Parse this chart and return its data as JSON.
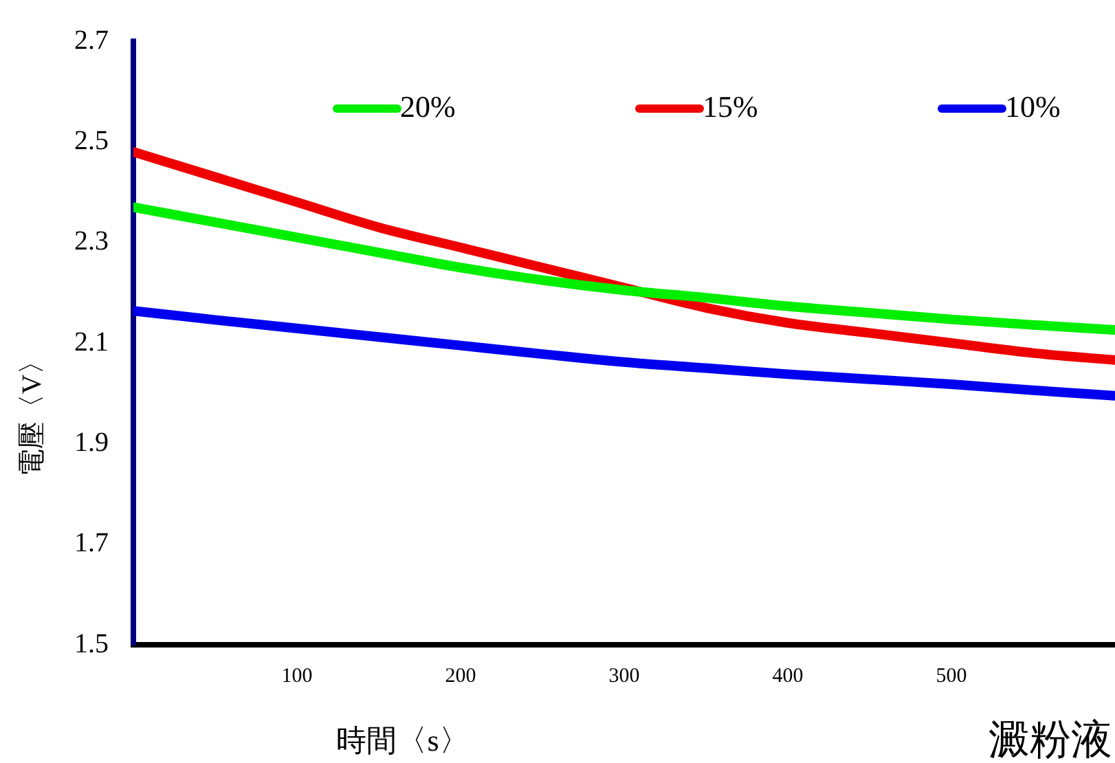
{
  "chart_data": {
    "type": "line",
    "xlabel": "時間〈s〉",
    "ylabel": "電壓〈V〉",
    "annotations": [
      "澱粉液"
    ],
    "x": [
      0,
      50,
      100,
      150,
      200,
      250,
      300,
      350,
      400,
      450,
      500,
      550,
      600
    ],
    "xlim": [
      0,
      600
    ],
    "xticks": [
      100,
      200,
      300,
      400,
      500
    ],
    "ylim": [
      1.5,
      2.7
    ],
    "yticks": [
      1.5,
      1.7,
      1.9,
      2.1,
      2.3,
      2.5,
      2.7
    ],
    "grid": false,
    "legend": "top",
    "marker": "none",
    "line_style": "solid",
    "series": [
      {
        "name": "20%",
        "color": "#00ee00",
        "values": [
          2.37,
          2.34,
          2.31,
          2.28,
          2.25,
          2.225,
          2.205,
          2.19,
          2.173,
          2.16,
          2.147,
          2.136,
          2.126
        ]
      },
      {
        "name": "15%",
        "color": "#ee0000",
        "values": [
          2.48,
          2.43,
          2.38,
          2.33,
          2.29,
          2.25,
          2.21,
          2.17,
          2.14,
          2.12,
          2.1,
          2.08,
          2.066
        ]
      },
      {
        "name": "10%",
        "color": "#0000ee",
        "values": [
          2.164,
          2.146,
          2.129,
          2.112,
          2.095,
          2.078,
          2.062,
          2.05,
          2.038,
          2.028,
          2.018,
          2.006,
          1.995
        ]
      }
    ]
  }
}
